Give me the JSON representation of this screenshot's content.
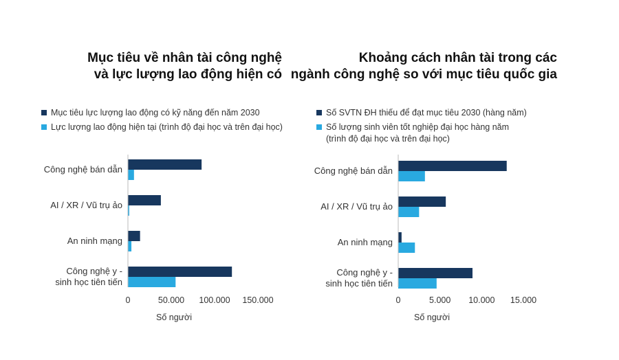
{
  "chart_data": [
    {
      "type": "bar",
      "orientation": "horizontal",
      "title_lines": [
        "Mục tiêu về nhân tài công nghệ",
        "và lực lượng lao động hiện có"
      ],
      "categories": [
        [
          "Công nghệ bán dẫn"
        ],
        [
          "AI / XR / Vũ trụ ảo"
        ],
        [
          "An ninh mạng"
        ],
        [
          "Công nghệ y -",
          "sinh học tiên tiến"
        ]
      ],
      "series": [
        {
          "name": "Mục tiêu lực lượng lao động có kỹ năng đến năm 2030",
          "color": "#17375e",
          "values": [
            85000,
            38000,
            14000,
            120000
          ]
        },
        {
          "name": "Lực lượng lao động hiện tại (trình độ đại học và trên đại học)",
          "color": "#29a9e0",
          "values": [
            7000,
            1500,
            4000,
            55000
          ]
        }
      ],
      "xlim": [
        0,
        150000
      ],
      "xticks": [
        "0",
        "50.000",
        "100.000",
        "150.000"
      ],
      "xlabel": "Số người",
      "grid": false,
      "legend": "top"
    },
    {
      "type": "bar",
      "orientation": "horizontal",
      "title_lines": [
        "Khoảng cách nhân tài trong các",
        "ngành công nghệ so với mục tiêu quốc gia"
      ],
      "categories": [
        [
          "Công nghệ bán dẫn"
        ],
        [
          "AI / XR / Vũ trụ ảo"
        ],
        [
          "An ninh mạng"
        ],
        [
          "Công nghệ y -",
          "sinh học tiên tiến"
        ]
      ],
      "series": [
        {
          "name": "Số SVTN ĐH thiếu để đạt mục tiêu 2030 (hàng năm)",
          "color": "#17375e",
          "values": [
            13000,
            5700,
            400,
            8900
          ]
        },
        {
          "name_lines": [
            "Số lượng sinh viên tốt nghiệp đại học hàng năm",
            "(trình độ đại học và trên đại học)"
          ],
          "color": "#29a9e0",
          "values": [
            3200,
            2500,
            2000,
            4600
          ]
        }
      ],
      "xlim": [
        0,
        15000
      ],
      "xticks": [
        "0",
        "5.000",
        "10.000",
        "15.000"
      ],
      "xlabel": "Số người",
      "grid": false,
      "legend": "top"
    }
  ]
}
